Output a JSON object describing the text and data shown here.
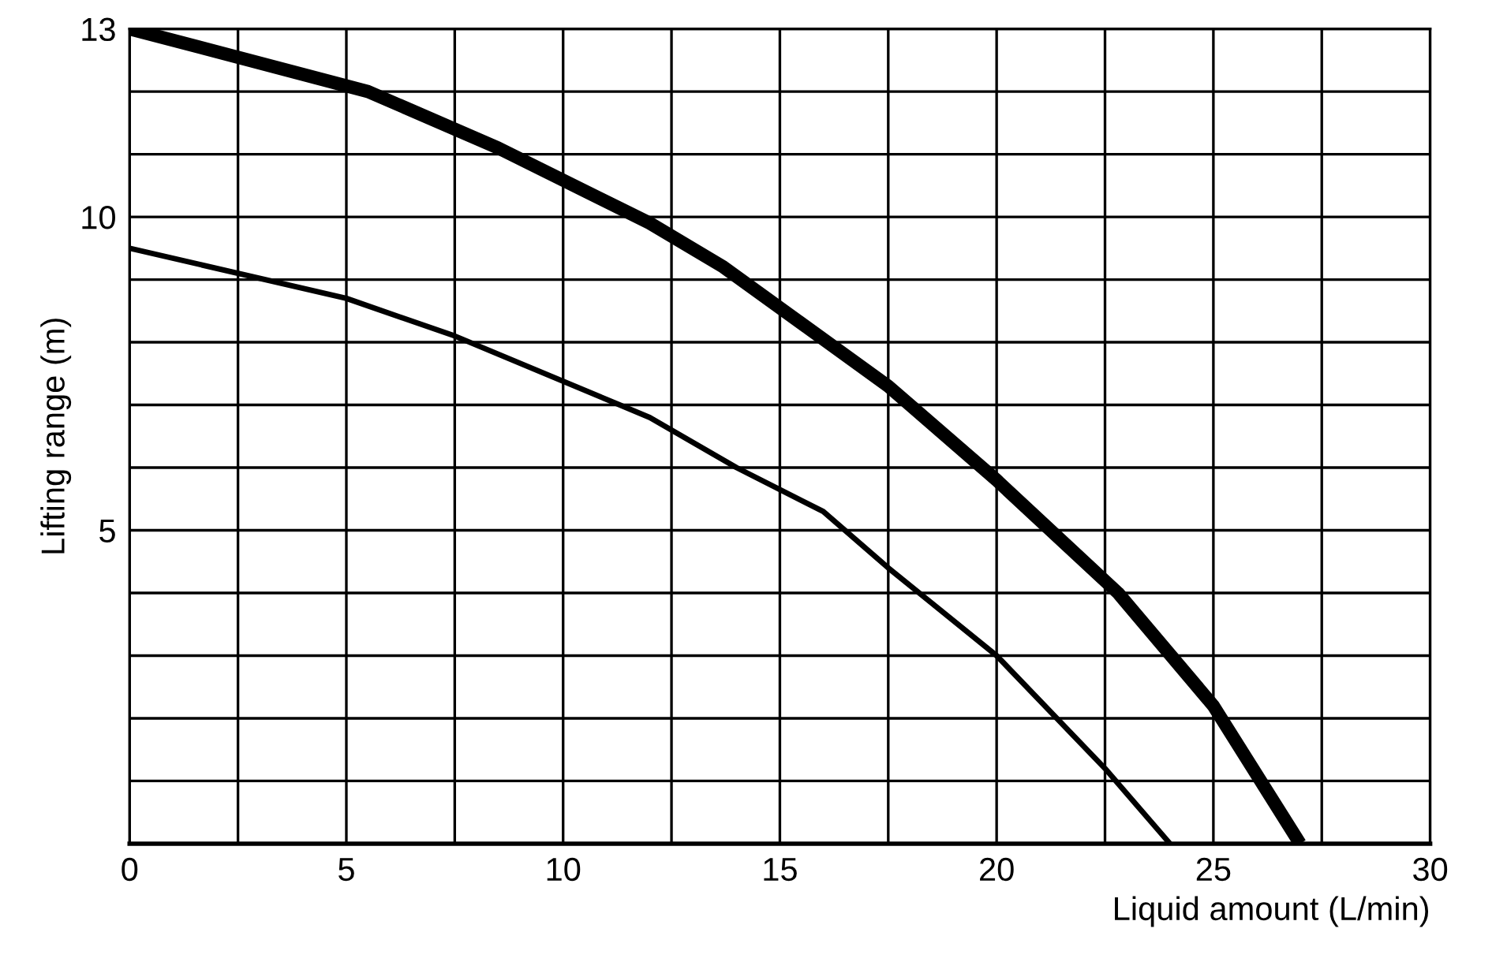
{
  "chart_data": {
    "type": "line",
    "xlabel": "Liquid amount (L/min)",
    "ylabel": "Lifting range (m)",
    "xlim": [
      0,
      30
    ],
    "ylim": [
      0,
      13
    ],
    "xticks": [
      0,
      {
        "value": 2.5,
        "label": null
      },
      5,
      {
        "value": 7.5,
        "label": null
      },
      10,
      {
        "value": 12.5,
        "label": null
      },
      15,
      {
        "value": 17.5,
        "label": null
      },
      20,
      {
        "value": 22.5,
        "label": null
      },
      25,
      {
        "value": 27.5,
        "label": null
      },
      30
    ],
    "yticks": [
      {
        "value": 0,
        "label": null
      },
      {
        "value": 1,
        "label": null
      },
      {
        "value": 2,
        "label": null
      },
      {
        "value": 3,
        "label": null
      },
      {
        "value": 4,
        "label": null
      },
      5,
      {
        "value": 6,
        "label": null
      },
      {
        "value": 7,
        "label": null
      },
      {
        "value": 8,
        "label": null
      },
      {
        "value": 9,
        "label": null
      },
      10,
      {
        "value": 11,
        "label": null
      },
      {
        "value": 12,
        "label": null
      },
      13
    ],
    "grid": true,
    "marker": "none",
    "line_style": "solid",
    "series": [
      {
        "color": "#000000",
        "x": [
          0,
          5.5,
          8.5,
          12,
          13.7,
          17.5,
          20,
          22.8,
          25,
          27
        ],
        "values": [
          13,
          12,
          11.1,
          9.9,
          9.2,
          7.3,
          5.8,
          4.0,
          2.2,
          0
        ]
      },
      {
        "color": "#000000",
        "x": [
          0,
          5,
          7.5,
          12,
          14,
          16,
          17.5,
          20,
          22.5,
          24
        ],
        "values": [
          9.5,
          8.7,
          8.1,
          6.8,
          6.0,
          5.3,
          4.4,
          3.0,
          1.2,
          0
        ]
      }
    ]
  }
}
